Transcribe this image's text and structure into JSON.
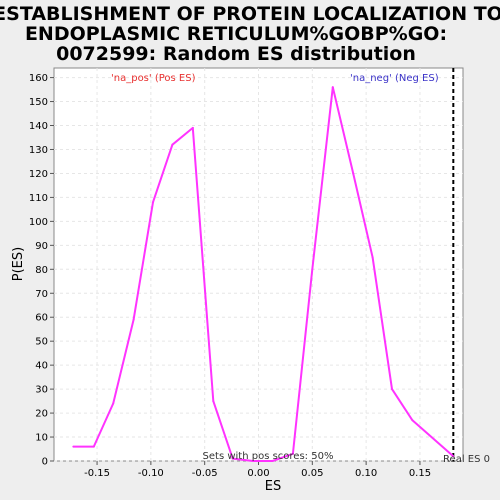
{
  "title": {
    "line1": "ESTABLISHMENT OF PROTEIN LOCALIZATION TO",
    "line2": "ENDOPLASMIC RETICULUM%GOBP%GO:",
    "line3": "0072599: Random ES distribution"
  },
  "colors": {
    "pos": "#e8302f",
    "neg": "#3a32c8",
    "line": "#ff33ff",
    "real_es": "#000000",
    "plot_bg": "#ffffff",
    "grid": "#e6e6e6"
  },
  "chart_data": {
    "type": "line",
    "title": "ESTABLISHMENT OF PROTEIN LOCALIZATION TO ENDOPLASMIC RETICULUM%GOBP%GO: 0072599: Random ES distribution",
    "xlabel": "ES",
    "ylabel": "P(ES)",
    "xlim": [
      -0.19,
      0.19
    ],
    "ylim": [
      0,
      164
    ],
    "x_ticks": [
      -0.15,
      -0.1,
      -0.05,
      0.0,
      0.05,
      0.1,
      0.15
    ],
    "x_tick_labels": [
      "-0.15",
      "-0.10",
      "-0.05",
      "0.00",
      "0.05",
      "0.10",
      "0.15"
    ],
    "y_ticks": [
      0,
      10,
      20,
      30,
      40,
      50,
      60,
      70,
      80,
      90,
      100,
      110,
      120,
      130,
      140,
      150,
      160
    ],
    "y_tick_labels": [
      "0",
      "10",
      "20",
      "30",
      "40",
      "50",
      "60",
      "70",
      "80",
      "90",
      "100",
      "110",
      "120",
      "130",
      "140",
      "150",
      "160"
    ],
    "grid": true,
    "series": [
      {
        "x": [
          -0.172,
          -0.153,
          -0.135,
          -0.116,
          -0.098,
          -0.08,
          -0.061,
          -0.042,
          -0.024,
          -0.005,
          0.013,
          0.032,
          0.05,
          0.069,
          0.088,
          0.106,
          0.124,
          0.143,
          0.181
        ],
        "y": [
          6,
          6,
          24,
          59,
          108,
          132,
          139,
          25,
          1,
          0,
          0,
          3,
          80,
          156,
          120,
          85,
          30,
          17,
          2
        ]
      }
    ],
    "legend": [
      {
        "label": "'na_pos' (Pos ES)",
        "color": "#e8302f"
      },
      {
        "label": "'na_neg' (Neg ES)",
        "color": "#3a32c8"
      }
    ],
    "annotations": {
      "pos_score_note": "Sets with pos scores: 50%",
      "real_es_label": "Real ES 0",
      "real_es_x": 0.181
    }
  }
}
